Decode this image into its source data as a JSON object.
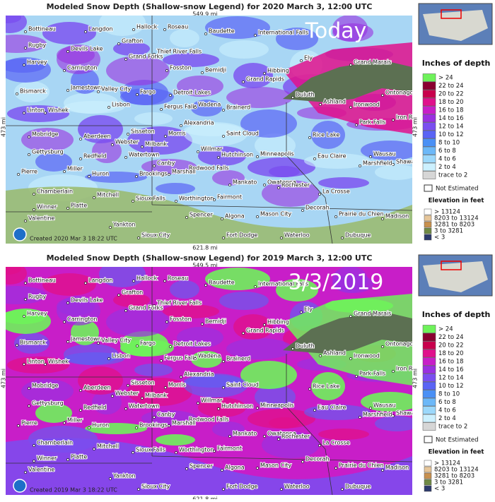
{
  "panels": [
    {
      "title": "Modeled Snow Depth (Shallow-snow Legend) for 2020 March 3, 12:00 UTC",
      "top_distance": "549.9 mi",
      "bottom_distance": "621.8 mi",
      "side_distance": "473 mi",
      "overlay": "Today",
      "created": "Created 2020 Mar 3  18:22 UTC"
    },
    {
      "title": "Modeled Snow Depth (Shallow-snow Legend) for 2019 March 3, 12:00 UTC",
      "top_distance": "549.5 mi",
      "bottom_distance": "621.8 mi",
      "side_distance": "473 mi",
      "overlay": "3/3/2019",
      "created": "Created 2019 Mar 3  18:22 UTC"
    }
  ],
  "cities": [
    "Bottineau",
    "Langdon",
    "Hallock",
    "Roseau",
    "Baudette",
    "International Falls",
    "Rugby",
    "Devils Lake",
    "Grafton",
    "Thief River Falls",
    "Harvey",
    "Carrington",
    "Grand Forks",
    "Fosston",
    "Bemidji",
    "Hibbing",
    "Ely",
    "Grand Marais",
    "Bismarck",
    "Jamestown",
    "Valley City",
    "Fargo",
    "Detroit Lakes",
    "Grand Rapids",
    "Duluth",
    "Ontonagon",
    "Linton",
    "Wishek",
    "Lisbon",
    "Fergus Falls",
    "Wadena",
    "Brainerd",
    "Ashland",
    "Ironwood",
    "Alexandria",
    "Park Falls",
    "Iron River",
    "Mobridge",
    "Aberdeen",
    "Sisseton",
    "Morris",
    "Saint Cloud",
    "Rice Lake",
    "Gettysburg",
    "Webster",
    "Milbank",
    "Redfield",
    "Watertown",
    "Willmar",
    "Hutchinson",
    "Minneapolis",
    "Eau Claire",
    "Wausau",
    "Shawano",
    "Canby",
    "Pierre",
    "Miller",
    "Huron",
    "Brookings",
    "Redwood Falls",
    "Marshall",
    "Marshfield",
    "Mankato",
    "Owatonna",
    "Rochester",
    "Chamberlain",
    "Mitchell",
    "Sioux Falls",
    "Worthington",
    "Fairmont",
    "La Crosse",
    "Winner",
    "Platte",
    "Spencer",
    "Algona",
    "Mason City",
    "Decorah",
    "Prairie du Chien",
    "Madison",
    "Valentine",
    "Yankton",
    "Sioux City",
    "Fort Dodge",
    "Waterloo",
    "Dubuque"
  ],
  "legend": {
    "title": "Inches of depth",
    "depth": [
      {
        "label": ">  24",
        "color": "#6ef25a"
      },
      {
        "label": "22  to  24",
        "color": "#8a0030"
      },
      {
        "label": "20  to  22",
        "color": "#c8004c"
      },
      {
        "label": "18  to  20",
        "color": "#e0108c"
      },
      {
        "label": "16  to  18",
        "color": "#c81ec8"
      },
      {
        "label": "14  to  16",
        "color": "#9a30e0"
      },
      {
        "label": "12  to  14",
        "color": "#7a4ef0"
      },
      {
        "label": "10  to  12",
        "color": "#5a64f5"
      },
      {
        "label": "8  to  10",
        "color": "#4a90f5"
      },
      {
        "label": "6  to  8",
        "color": "#6cb8f8"
      },
      {
        "label": "4  to  6",
        "color": "#9cd8fb"
      },
      {
        "label": "2  to  4",
        "color": "#ccf0fe"
      },
      {
        "label": "trace  to  2",
        "color": "#d6d6d6"
      }
    ],
    "not_estimated": "Not Estimated",
    "elevation_title": "Elevation in feet",
    "elevation": [
      {
        "label": ">  13124",
        "color": "#ffffff"
      },
      {
        "label": "8203  to  13124",
        "color": "#e6c69a"
      },
      {
        "label": "3281  to  8203",
        "color": "#c8904e"
      },
      {
        "label": "3  to  3281",
        "color": "#6f8a44"
      },
      {
        "label": "<  3",
        "color": "#2c3a6c"
      }
    ]
  }
}
